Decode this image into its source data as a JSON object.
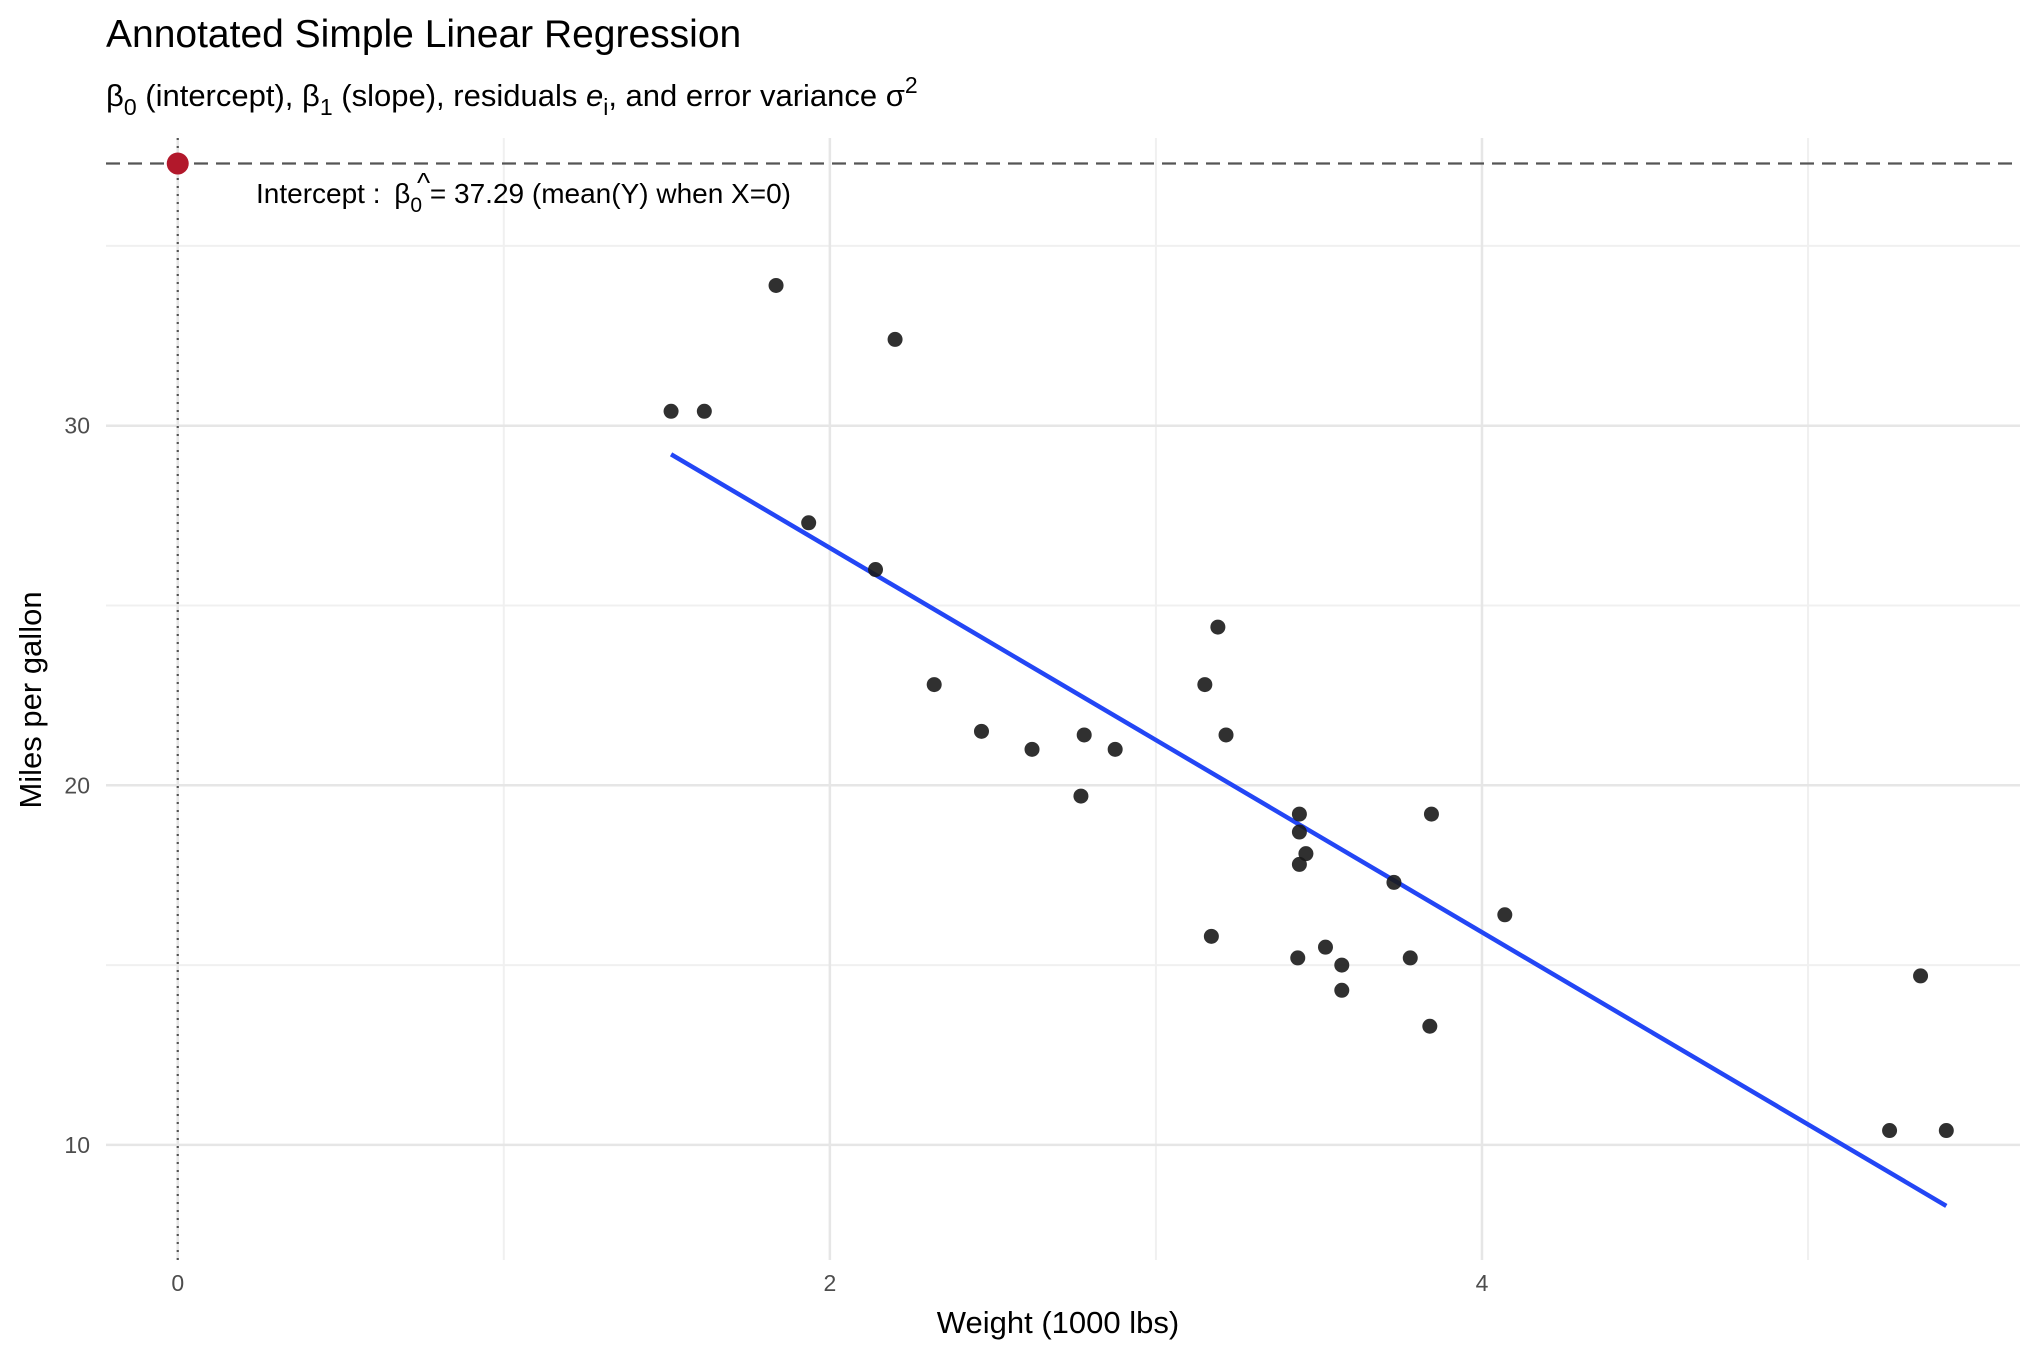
{
  "chart_data": {
    "type": "scatter",
    "title": "Annotated Simple Linear Regression",
    "subtitle": {
      "beta0": "β",
      "beta0_sub": "0",
      "beta0_desc": " (intercept), ",
      "beta1": "β",
      "beta1_sub": "1",
      "beta1_desc": " (slope), residuals ",
      "resid": "e",
      "resid_sub": "i",
      "variance_text": ", and error variance σ",
      "variance_sup": "2"
    },
    "xlabel": "Weight (1000 lbs)",
    "ylabel": "Miles per gallon",
    "xlim": [
      -0.22,
      5.65
    ],
    "ylim": [
      6.8,
      38.0
    ],
    "x_ticks": [
      "0",
      "2",
      "4"
    ],
    "x_tick_values": [
      0,
      2,
      4
    ],
    "y_ticks": [
      "10",
      "20",
      "30"
    ],
    "y_tick_values": [
      10,
      20,
      30
    ],
    "x_minor_gridlines": [
      1,
      3,
      5
    ],
    "y_minor_gridlines": [
      15,
      25,
      35
    ],
    "grid": true,
    "points": [
      {
        "x": 2.62,
        "y": 21.0
      },
      {
        "x": 2.875,
        "y": 21.0
      },
      {
        "x": 2.32,
        "y": 22.8
      },
      {
        "x": 3.215,
        "y": 21.4
      },
      {
        "x": 3.44,
        "y": 18.7
      },
      {
        "x": 3.46,
        "y": 18.1
      },
      {
        "x": 3.57,
        "y": 14.3
      },
      {
        "x": 3.19,
        "y": 24.4
      },
      {
        "x": 3.15,
        "y": 22.8
      },
      {
        "x": 3.44,
        "y": 19.2
      },
      {
        "x": 3.44,
        "y": 17.8
      },
      {
        "x": 4.07,
        "y": 16.4
      },
      {
        "x": 3.73,
        "y": 17.3
      },
      {
        "x": 3.78,
        "y": 15.2
      },
      {
        "x": 5.25,
        "y": 10.4
      },
      {
        "x": 5.424,
        "y": 10.4
      },
      {
        "x": 5.345,
        "y": 14.7
      },
      {
        "x": 2.2,
        "y": 32.4
      },
      {
        "x": 1.615,
        "y": 30.4
      },
      {
        "x": 1.835,
        "y": 33.9
      },
      {
        "x": 2.465,
        "y": 21.5
      },
      {
        "x": 3.52,
        "y": 15.5
      },
      {
        "x": 3.435,
        "y": 15.2
      },
      {
        "x": 3.84,
        "y": 13.3
      },
      {
        "x": 3.845,
        "y": 19.2
      },
      {
        "x": 1.935,
        "y": 27.3
      },
      {
        "x": 2.14,
        "y": 26.0
      },
      {
        "x": 1.513,
        "y": 30.4
      },
      {
        "x": 3.17,
        "y": 15.8
      },
      {
        "x": 2.77,
        "y": 19.7
      },
      {
        "x": 3.57,
        "y": 15.0
      },
      {
        "x": 2.78,
        "y": 21.4
      }
    ],
    "regression_line": {
      "intercept": 37.29,
      "slope": -5.344,
      "x_range": [
        1.513,
        5.424
      ],
      "color": "#2346f5"
    },
    "intercept_point": {
      "x": 0,
      "y": 37.29,
      "color": "#b2182b"
    },
    "intercept_hline": {
      "y": 37.29
    },
    "zero_vline": {
      "x": 0
    },
    "annotation": {
      "label": "Intercept : ",
      "beta": "β",
      "hat": "^",
      "beta_sub": "0",
      "eq": " = ",
      "value": "37.29",
      "desc": " (mean(Y) when X=0)"
    },
    "colors": {
      "points": "#1a1a1a",
      "line": "#2346f5",
      "intercept": "#b2182b",
      "grid": "#e6e6e6"
    }
  }
}
